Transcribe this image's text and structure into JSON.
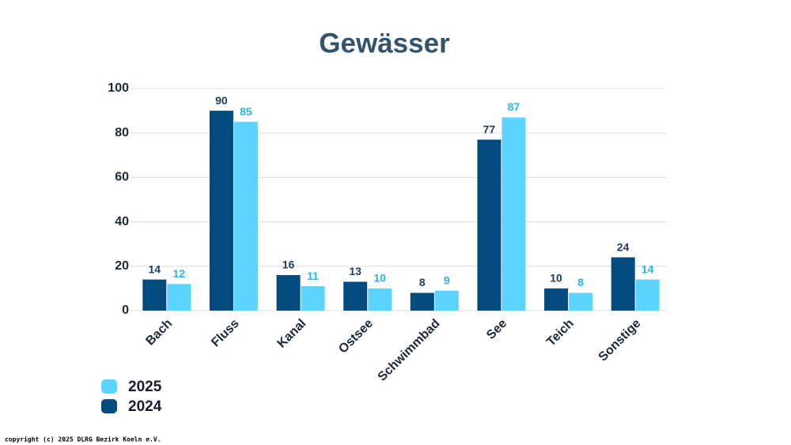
{
  "chart_data": {
    "type": "bar",
    "title": "Gewässer",
    "categories": [
      "Bach",
      "Fluss",
      "Kanal",
      "Ostsee",
      "Schwimmbad",
      "See",
      "Teich",
      "Sonstige"
    ],
    "series": [
      {
        "name": "2024",
        "color": "#024b80",
        "values": [
          14,
          90,
          16,
          13,
          8,
          77,
          10,
          24
        ]
      },
      {
        "name": "2025",
        "color": "#5dd3ff",
        "values": [
          12,
          85,
          11,
          10,
          9,
          87,
          8,
          14
        ]
      }
    ],
    "ylim": [
      0,
      100
    ],
    "yticks": [
      0,
      20,
      40,
      60,
      80,
      100
    ],
    "grid": true,
    "legend": "bottom-left",
    "footer": "copyright (c) 2025 DLRG Bezirk Koeln e.V."
  }
}
